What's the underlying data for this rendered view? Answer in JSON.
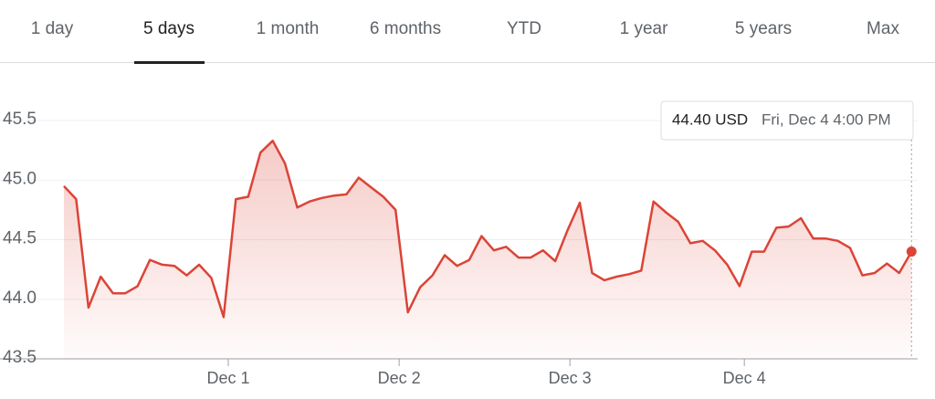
{
  "tabs": [
    "1 day",
    "5 days",
    "1 month",
    "6 months",
    "YTD",
    "1 year",
    "5 years",
    "Max"
  ],
  "active_tab": 1,
  "tooltip": {
    "price": "44.40 USD",
    "time": "Fri, Dec 4 4:00 PM"
  },
  "chart_data": {
    "type": "line",
    "color": "#db4437",
    "x": [
      0,
      1,
      2,
      3,
      4,
      5,
      6,
      7,
      8,
      9,
      10,
      11,
      12,
      13,
      14,
      15,
      16,
      17,
      18,
      19,
      20,
      21,
      22,
      23,
      24,
      25,
      26,
      27,
      28,
      29,
      30,
      31,
      32,
      33,
      34,
      35,
      36,
      37,
      38,
      39,
      40,
      41,
      42,
      43,
      44,
      45,
      46,
      47,
      48,
      49,
      50,
      51,
      52,
      53,
      54,
      55,
      56,
      57,
      58,
      59,
      60,
      61,
      62,
      63,
      64,
      65,
      66,
      67,
      68,
      69
    ],
    "values": [
      44.95,
      44.84,
      43.93,
      44.19,
      44.05,
      44.05,
      44.11,
      44.33,
      44.29,
      44.28,
      44.2,
      44.29,
      44.18,
      43.85,
      44.84,
      44.86,
      45.23,
      45.33,
      45.14,
      44.77,
      44.82,
      44.85,
      44.87,
      44.88,
      45.02,
      44.94,
      44.86,
      44.75,
      43.89,
      44.1,
      44.2,
      44.37,
      44.28,
      44.33,
      44.53,
      44.41,
      44.44,
      44.35,
      44.35,
      44.41,
      44.32,
      44.58,
      44.81,
      44.22,
      44.16,
      44.19,
      44.21,
      44.24,
      44.82,
      44.73,
      44.65,
      44.47,
      44.49,
      44.41,
      44.29,
      44.11,
      44.4,
      44.4,
      44.6,
      44.61,
      44.68,
      44.51,
      44.51,
      44.49,
      44.43,
      44.2,
      44.22,
      44.3,
      44.22,
      44.4
    ],
    "xlim": [
      -0.37,
      69.5
    ],
    "xticks": [
      {
        "value": 13.38,
        "label": "Dec 1"
      },
      {
        "value": 27.29,
        "label": "Dec 2"
      },
      {
        "value": 41.19,
        "label": "Dec 3"
      },
      {
        "value": 55.39,
        "label": "Dec 4"
      }
    ],
    "ylim": [
      43.5,
      45.5
    ],
    "yticks": [
      {
        "value": 43.5,
        "label": "43.5"
      },
      {
        "value": 44,
        "label": "44.0"
      },
      {
        "value": 44.5,
        "label": "44.5"
      },
      {
        "value": 45,
        "label": "45.0"
      },
      {
        "value": 45.5,
        "label": "45.5"
      }
    ],
    "grid": true
  }
}
